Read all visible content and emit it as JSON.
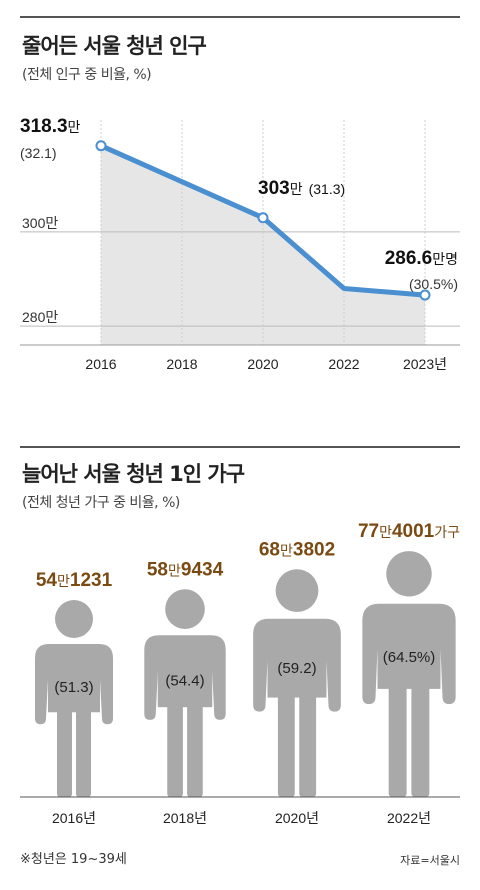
{
  "chart_data": [
    {
      "type": "line",
      "title": "줄어든 서울 청년 인구",
      "subtitle": "(전체 인구 중 비율, %)",
      "x": [
        "2016",
        "2018",
        "2020",
        "2022",
        "2023년"
      ],
      "series": [
        {
          "values": [
            318.3,
            null,
            303,
            288,
            286.6
          ]
        }
      ],
      "y_unit": "만명",
      "ylim": [
        276,
        328
      ],
      "y_ticks": [
        "300만",
        "280만"
      ],
      "annotations": [
        {
          "category": "2016",
          "value": "318.3",
          "unit": "만",
          "pct": "(32.1)"
        },
        {
          "category": "2020",
          "value": "303",
          "unit": "만",
          "pct": "(31.3)"
        },
        {
          "category": "2023년",
          "value": "286.6",
          "unit": "만명",
          "pct": "(30.5%)"
        }
      ],
      "colors": {
        "line": "#4a8fd0",
        "area": "#e6e6e6",
        "marker_fill": "#ffffff"
      }
    },
    {
      "type": "pictogram",
      "title": "늘어난 서울 청년 1인 가구",
      "subtitle": "(전체 청년 가구 중 비율, %)",
      "categories": [
        "2016년",
        "2018년",
        "2020년",
        "2022년"
      ],
      "households": [
        {
          "man": "54",
          "man_unit": "만",
          "rest": "1231",
          "suffix": ""
        },
        {
          "man": "58",
          "man_unit": "만",
          "rest": "9434",
          "suffix": ""
        },
        {
          "man": "68",
          "man_unit": "만",
          "rest": "3802",
          "suffix": ""
        },
        {
          "man": "77",
          "man_unit": "만",
          "rest": "4001",
          "suffix": "가구"
        }
      ],
      "values": [
        541231,
        589434,
        683802,
        774001
      ],
      "pct_labels": [
        "(51.3)",
        "(54.4)",
        "(59.2)",
        "(64.5%)"
      ],
      "colors": {
        "figure": "#a9a9a9",
        "count": "#7a4a12"
      }
    }
  ],
  "footnote": "※청년은 19~39세",
  "source": "자료=서울시"
}
